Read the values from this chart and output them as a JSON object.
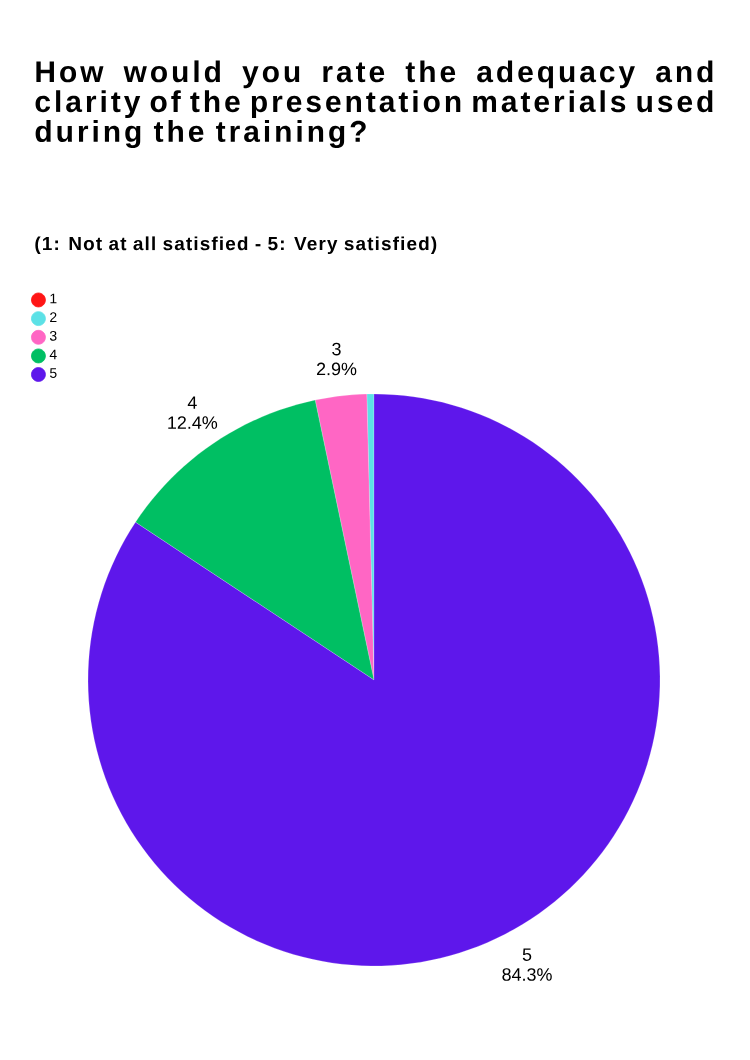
{
  "chart_data": {
    "type": "pie",
    "title": "How would you rate the adequacy and clarity of the presentation materials used during the training?",
    "subtitle": "(1: Not at all satisfied - 5: Very satisfied)",
    "categories": [
      "1",
      "2",
      "3",
      "4",
      "5"
    ],
    "values": [
      0,
      0.4,
      2.9,
      12.4,
      84.3
    ],
    "colors": [
      "#ff1616",
      "#5ce1e6",
      "#ff66c4",
      "#00bf63",
      "#5e17eb"
    ],
    "value_labels": [
      null,
      null,
      "2.9%",
      "12.4%",
      "84.3%"
    ],
    "legend": "top left"
  }
}
